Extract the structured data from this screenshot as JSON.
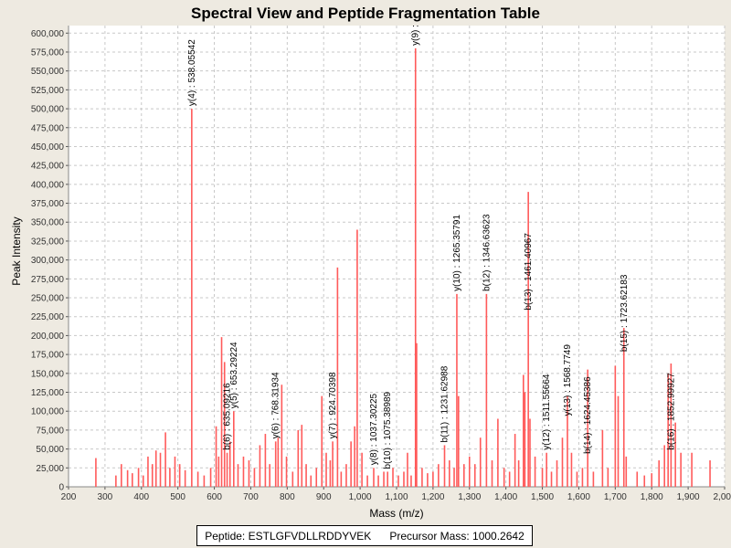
{
  "chart_data": {
    "type": "spectrum",
    "title": "Spectral View and Peptide Fragmentation Table",
    "xlabel": "Mass (m/z)",
    "ylabel": "Peak Intensity",
    "xlim": [
      200,
      2000
    ],
    "ylim": [
      0,
      610000
    ],
    "xticks": [
      200,
      300,
      400,
      500,
      600,
      700,
      800,
      900,
      1000,
      1100,
      1200,
      1300,
      1400,
      1500,
      1600,
      1700,
      1800,
      1900,
      2000
    ],
    "xtick_labels": [
      "200",
      "300",
      "400",
      "500",
      "600",
      "700",
      "800",
      "900",
      "1,000",
      "1,100",
      "1,200",
      "1,300",
      "1,400",
      "1,500",
      "1,600",
      "1,700",
      "1,800",
      "1,900",
      "2,000"
    ],
    "yticks": [
      0,
      25000,
      50000,
      75000,
      100000,
      125000,
      150000,
      175000,
      200000,
      225000,
      250000,
      275000,
      300000,
      325000,
      350000,
      375000,
      400000,
      425000,
      450000,
      475000,
      500000,
      525000,
      550000,
      575000,
      600000
    ],
    "ytick_labels": [
      "0",
      "25,000",
      "50,000",
      "75,000",
      "100,000",
      "125,000",
      "150,000",
      "175,000",
      "200,000",
      "225,000",
      "250,000",
      "275,000",
      "300,000",
      "325,000",
      "350,000",
      "375,000",
      "400,000",
      "425,000",
      "450,000",
      "475,000",
      "500,000",
      "525,000",
      "550,000",
      "575,000",
      "600,000"
    ],
    "grid": true,
    "peaks": [
      {
        "x": 275,
        "y": 38000
      },
      {
        "x": 330,
        "y": 15000
      },
      {
        "x": 345,
        "y": 30000
      },
      {
        "x": 362,
        "y": 22000
      },
      {
        "x": 375,
        "y": 18000
      },
      {
        "x": 392,
        "y": 25000
      },
      {
        "x": 405,
        "y": 15000
      },
      {
        "x": 418,
        "y": 40000
      },
      {
        "x": 430,
        "y": 30000
      },
      {
        "x": 440,
        "y": 48000
      },
      {
        "x": 452,
        "y": 45000
      },
      {
        "x": 466,
        "y": 72000
      },
      {
        "x": 478,
        "y": 25000
      },
      {
        "x": 492,
        "y": 40000
      },
      {
        "x": 505,
        "y": 30000
      },
      {
        "x": 520,
        "y": 22000
      },
      {
        "x": 538.05542,
        "y": 500000
      },
      {
        "x": 555,
        "y": 20000
      },
      {
        "x": 572,
        "y": 15000
      },
      {
        "x": 590,
        "y": 25000
      },
      {
        "x": 605,
        "y": 80000
      },
      {
        "x": 612,
        "y": 40000
      },
      {
        "x": 620,
        "y": 198000
      },
      {
        "x": 628,
        "y": 165000
      },
      {
        "x": 635.09216,
        "y": 45000
      },
      {
        "x": 643,
        "y": 60000
      },
      {
        "x": 653.29224,
        "y": 100000
      },
      {
        "x": 665,
        "y": 30000
      },
      {
        "x": 680,
        "y": 40000
      },
      {
        "x": 695,
        "y": 35000
      },
      {
        "x": 710,
        "y": 25000
      },
      {
        "x": 725,
        "y": 55000
      },
      {
        "x": 740,
        "y": 70000
      },
      {
        "x": 752,
        "y": 30000
      },
      {
        "x": 768.31934,
        "y": 60000
      },
      {
        "x": 775,
        "y": 65000
      },
      {
        "x": 785,
        "y": 135000
      },
      {
        "x": 798,
        "y": 40000
      },
      {
        "x": 815,
        "y": 20000
      },
      {
        "x": 830,
        "y": 75000
      },
      {
        "x": 840,
        "y": 82000
      },
      {
        "x": 852,
        "y": 30000
      },
      {
        "x": 865,
        "y": 15000
      },
      {
        "x": 880,
        "y": 25000
      },
      {
        "x": 895,
        "y": 120000
      },
      {
        "x": 907,
        "y": 45000
      },
      {
        "x": 918,
        "y": 35000
      },
      {
        "x": 924.70398,
        "y": 60000
      },
      {
        "x": 938,
        "y": 290000
      },
      {
        "x": 948,
        "y": 20000
      },
      {
        "x": 962,
        "y": 30000
      },
      {
        "x": 975,
        "y": 60000
      },
      {
        "x": 985,
        "y": 80000
      },
      {
        "x": 992,
        "y": 340000
      },
      {
        "x": 1005,
        "y": 45000
      },
      {
        "x": 1020,
        "y": 15000
      },
      {
        "x": 1037.30225,
        "y": 25000
      },
      {
        "x": 1050,
        "y": 15000
      },
      {
        "x": 1065,
        "y": 20000
      },
      {
        "x": 1075.38989,
        "y": 20000
      },
      {
        "x": 1090,
        "y": 25000
      },
      {
        "x": 1105,
        "y": 15000
      },
      {
        "x": 1120,
        "y": 20000
      },
      {
        "x": 1130,
        "y": 45000
      },
      {
        "x": 1140,
        "y": 15000
      },
      {
        "x": 1152,
        "y": 580000
      },
      {
        "x": 1155,
        "y": 190000
      },
      {
        "x": 1170,
        "y": 25000
      },
      {
        "x": 1185,
        "y": 18000
      },
      {
        "x": 1200,
        "y": 20000
      },
      {
        "x": 1215,
        "y": 30000
      },
      {
        "x": 1231.62988,
        "y": 55000
      },
      {
        "x": 1245,
        "y": 35000
      },
      {
        "x": 1258,
        "y": 25000
      },
      {
        "x": 1265.35791,
        "y": 255000
      },
      {
        "x": 1270,
        "y": 120000
      },
      {
        "x": 1285,
        "y": 30000
      },
      {
        "x": 1300,
        "y": 40000
      },
      {
        "x": 1315,
        "y": 30000
      },
      {
        "x": 1330,
        "y": 65000
      },
      {
        "x": 1346.63623,
        "y": 255000
      },
      {
        "x": 1362,
        "y": 35000
      },
      {
        "x": 1378,
        "y": 90000
      },
      {
        "x": 1395,
        "y": 25000
      },
      {
        "x": 1410,
        "y": 20000
      },
      {
        "x": 1425,
        "y": 70000
      },
      {
        "x": 1435,
        "y": 35000
      },
      {
        "x": 1448,
        "y": 148000
      },
      {
        "x": 1452,
        "y": 125000
      },
      {
        "x": 1461.40967,
        "y": 390000
      },
      {
        "x": 1466,
        "y": 90000
      },
      {
        "x": 1480,
        "y": 40000
      },
      {
        "x": 1500,
        "y": 25000
      },
      {
        "x": 1511.55664,
        "y": 45000
      },
      {
        "x": 1525,
        "y": 20000
      },
      {
        "x": 1540,
        "y": 35000
      },
      {
        "x": 1555,
        "y": 65000
      },
      {
        "x": 1568.7749,
        "y": 120000
      },
      {
        "x": 1580,
        "y": 45000
      },
      {
        "x": 1595,
        "y": 20000
      },
      {
        "x": 1610,
        "y": 25000
      },
      {
        "x": 1624.45386,
        "y": 155000
      },
      {
        "x": 1640,
        "y": 20000
      },
      {
        "x": 1665,
        "y": 75000
      },
      {
        "x": 1680,
        "y": 25000
      },
      {
        "x": 1700,
        "y": 160000
      },
      {
        "x": 1708,
        "y": 120000
      },
      {
        "x": 1723.62183,
        "y": 210000
      },
      {
        "x": 1730,
        "y": 40000
      },
      {
        "x": 1760,
        "y": 20000
      },
      {
        "x": 1780,
        "y": 15000
      },
      {
        "x": 1800,
        "y": 18000
      },
      {
        "x": 1820,
        "y": 35000
      },
      {
        "x": 1835,
        "y": 55000
      },
      {
        "x": 1845,
        "y": 150000
      },
      {
        "x": 1852.99927,
        "y": 163000
      },
      {
        "x": 1865,
        "y": 85000
      },
      {
        "x": 1880,
        "y": 45000
      },
      {
        "x": 1910,
        "y": 45000
      },
      {
        "x": 1960,
        "y": 35000
      }
    ],
    "annotations": [
      {
        "x": 538.05542,
        "y": 500000,
        "label": "y(4) : 538.05542"
      },
      {
        "x": 635.09216,
        "y": 45000,
        "label": "b(6) : 635.09216"
      },
      {
        "x": 653.29224,
        "y": 100000,
        "label": "y(5) : 653.29224"
      },
      {
        "x": 768.31934,
        "y": 60000,
        "label": "y(6) : 768.31934"
      },
      {
        "x": 924.70398,
        "y": 60000,
        "label": "y(7) : 924.70398"
      },
      {
        "x": 1037.30225,
        "y": 25000,
        "label": "y(8) : 1037.30225"
      },
      {
        "x": 1075.38989,
        "y": 20000,
        "label": "b(10) : 1075.38989"
      },
      {
        "x": 1152,
        "y": 580000,
        "label": "y(9) :"
      },
      {
        "x": 1231.62988,
        "y": 55000,
        "label": "b(11) : 1231.62988"
      },
      {
        "x": 1265.35791,
        "y": 255000,
        "label": "y(10) : 1265.35791"
      },
      {
        "x": 1346.63623,
        "y": 255000,
        "label": "b(12) : 1346.63623"
      },
      {
        "x": 1461.40967,
        "y": 230000,
        "label": "b(13) : 1461.40967"
      },
      {
        "x": 1511.55664,
        "y": 45000,
        "label": "y(12) : 1511.55664"
      },
      {
        "x": 1568.7749,
        "y": 90000,
        "label": "y(13) : 1568.7749"
      },
      {
        "x": 1624.45386,
        "y": 40000,
        "label": "b(14) : 1624.45386"
      },
      {
        "x": 1723.62183,
        "y": 175000,
        "label": "b(15) : 1723.62183"
      },
      {
        "x": 1852.99927,
        "y": 45000,
        "label": "b(16) : 1852.99927"
      }
    ]
  },
  "legend": {
    "peptide_text": "Peptide: ESTLGFVDLLRDDYVEK",
    "precursor_text": "Precursor Mass: 1000.2642"
  },
  "colors": {
    "peak": "#ff5a5a",
    "grid": "#c8c8c8",
    "plot_bg": "#ffffff",
    "page_bg": "#eeeae1"
  }
}
